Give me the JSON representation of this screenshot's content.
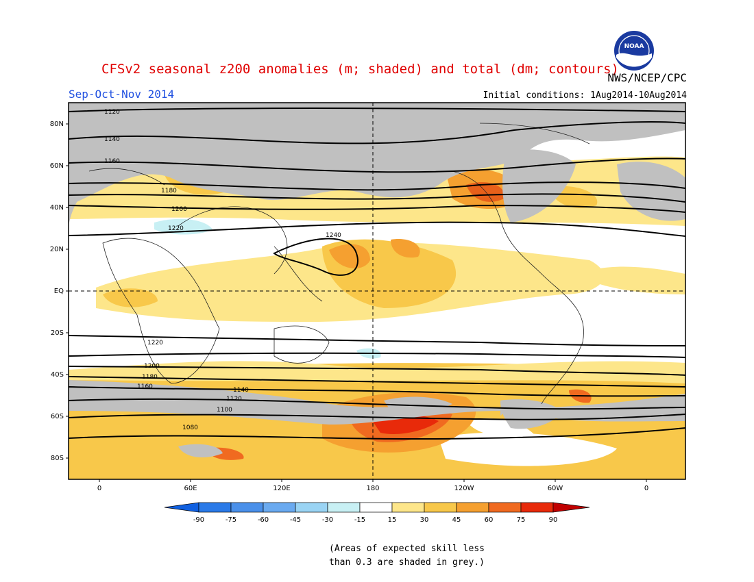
{
  "header": {
    "title": "CFSv2 seasonal z200 anomalies (m; shaded) and total (dm; contours)",
    "agency": "NWS/NCEP/CPC",
    "season": "Sep-Oct-Nov 2014",
    "initial_conditions": "Initial conditions: 1Aug2014-10Aug2014",
    "logo_text": "NOAA"
  },
  "axes": {
    "lat_labels": [
      "80N",
      "60N",
      "40N",
      "20N",
      "EQ",
      "20S",
      "40S",
      "60S",
      "80S"
    ],
    "lon_labels": [
      "0",
      "60E",
      "120E",
      "180",
      "120W",
      "60W",
      "0"
    ]
  },
  "contours": {
    "labels": [
      "1120",
      "1140",
      "1160",
      "1180",
      "1200",
      "1220",
      "1240",
      "1220",
      "1200",
      "1180",
      "1160",
      "1140",
      "1120",
      "1100",
      "1080"
    ]
  },
  "colorbar": {
    "ticks": [
      "-90",
      "-75",
      "-60",
      "-45",
      "-30",
      "-15",
      "15",
      "30",
      "45",
      "60",
      "75",
      "90"
    ],
    "colors": [
      "#1060e0",
      "#2a7ae8",
      "#4a90ea",
      "#6aaaf0",
      "#9ad4f4",
      "#c8f0f4",
      "#ffffff",
      "#fde68a",
      "#f8c84a",
      "#f5a030",
      "#f06a20",
      "#e82a0a",
      "#c00000"
    ]
  },
  "colors": {
    "grey_skill": "#c0c0c0",
    "anomaly_15_30": "#fde68a",
    "anomaly_30_45": "#f8c84a",
    "anomaly_45_60": "#f5a030",
    "anomaly_60_75": "#f06a20",
    "anomaly_75_90": "#e82a0a",
    "anomaly_neg_15_30": "#c8f0f4",
    "title_red": "#e00000",
    "season_blue": "#2050e0"
  },
  "footnote": {
    "line1": "(Areas of expected skill less",
    "line2": "than 0.3 are shaded in grey.)"
  }
}
